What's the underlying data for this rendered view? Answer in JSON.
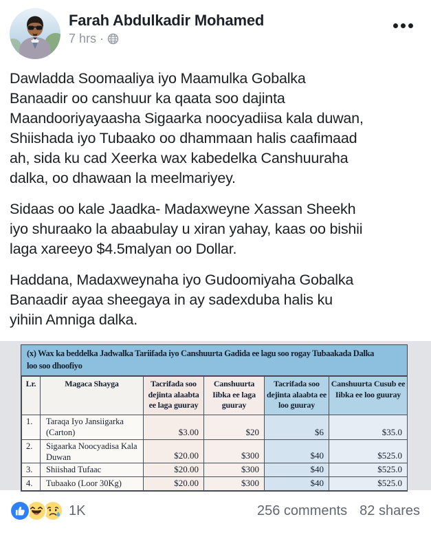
{
  "header": {
    "author": "Farah Abdulkadir Mohamed",
    "timestamp": "7 hrs",
    "separator": "·",
    "privacy_icon": "globe-public-icon",
    "menu_icon": "ellipsis-menu-icon"
  },
  "post": {
    "paragraphs": [
      "Dawladda Soomaaliya iyo Maamulka Gobalka\nBanaadir oo canshuur ka qaata soo dajinta\nMaandooriyayaasha Sigaarka noocyadiisa kala duwan,\nShiishada iyo Tubaako oo dhammaan halis caafimaad\nah, sida ku cad Xeerka wax kabedelka Canshuuraha\ndalka, oo dhawaan la meelmariyey.",
      "Sidaas oo kale Jaadka- Madaxweyne Xassan Sheekh\niyo shuraako la abaabulay u xiran yahay, kaas oo bishii\nlaga xareeyo $4.5malyan oo Dollar.",
      "Haddana, Madaxweynaha iyo Gudoomiyaha Gobalka\nBanaadir ayaa sheegaya in ay sadexduba halis ku\nyihiin Amniga dalka."
    ]
  },
  "table_image": {
    "title": "(x) Wax ka beddelka Jadwalka Tariifada iyo Canshuurta Gadida ee lagu soo rogay Tubaakada Dalka\nloo soo dhoofiyo",
    "columns": [
      "Lr.",
      "Magaca Shayga",
      "Tacrifada soo dejinta alaabta ee laga guuray",
      "Canshuurta Iibka ee laga guuray",
      "Tacrifada soo dejinta alaabta ee loo guuray",
      "Canshuurta Cusub ee Iibka ee loo guuray"
    ],
    "rows": [
      [
        "1.",
        "Taraqa Iyo Jansiigarka (Carton)",
        "$3.00",
        "$20",
        "$6",
        "$35.0"
      ],
      [
        "2.",
        "Sigaarka Noocyadisa Kala Duwan",
        "$20.00",
        "$300",
        "$40",
        "$525.0"
      ],
      [
        "3.",
        "Shiishad Tufaac",
        "$20.00",
        "$300",
        "$40",
        "$525.0"
      ],
      [
        "4.",
        "Tubaako (Loor 30Kg)",
        "$20.00",
        "$300",
        "$40",
        "$525.0"
      ]
    ]
  },
  "footer": {
    "reaction_icons": [
      "like-icon",
      "haha-icon",
      "sad-icon"
    ],
    "reaction_count": "1K",
    "comments": "256 comments",
    "shares": "82 shares"
  },
  "colors": {
    "accent_like": "#2e81f4",
    "emoji_yellow": "#ffd972",
    "doc_title_band": "#8cc0de",
    "doc_blue_cell": "#b0d3e8",
    "doc_pink_cell": "#f5ece9",
    "scan_background": "#e2e3e6",
    "meta_gray": "#90949c",
    "footer_gray": "#616770"
  }
}
